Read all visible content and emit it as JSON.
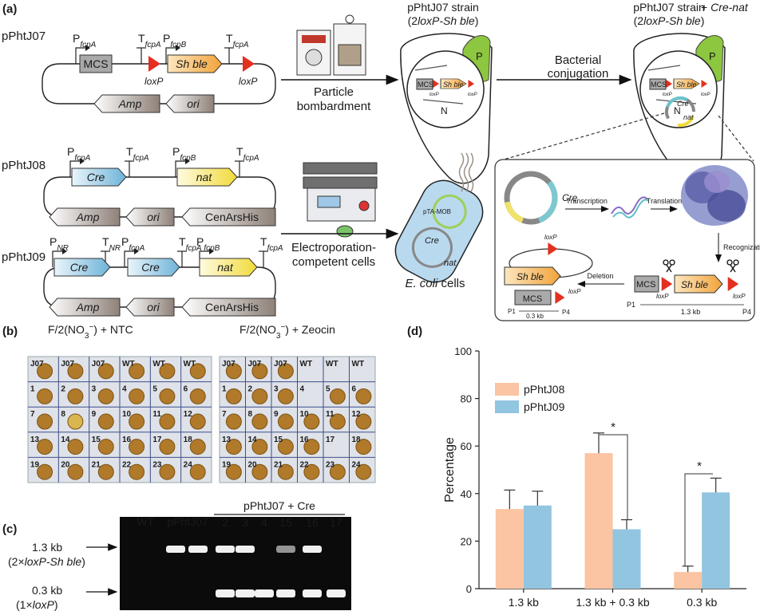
{
  "panel_a": {
    "label": "(a)",
    "plasmids": [
      {
        "name": "pPhtJ07",
        "elements": [
          "MCS",
          "Sh ble"
        ],
        "sites": [
          "loxP",
          "loxP"
        ],
        "backbone": [
          "Amp",
          "ori"
        ],
        "regulators": [
          {
            "letter": "P",
            "sub": "fcpA"
          },
          {
            "letter": "T",
            "sub": "fcpA"
          },
          {
            "letter": "P",
            "sub": "fcpB"
          },
          {
            "letter": "T",
            "sub": "fcpA"
          }
        ]
      },
      {
        "name": "pPhtJ08",
        "elements": [
          "Cre",
          "nat"
        ],
        "backbone": [
          "Amp",
          "ori",
          "CenArsHis"
        ],
        "regulators": [
          {
            "letter": "P",
            "sub": "fcpA"
          },
          {
            "letter": "T",
            "sub": "fcpA"
          },
          {
            "letter": "P",
            "sub": "fcpB"
          },
          {
            "letter": "T",
            "sub": "fcpA"
          }
        ]
      },
      {
        "name": "pPhtJ09",
        "elements": [
          "Cre",
          "Cre",
          "nat"
        ],
        "backbone": [
          "Amp",
          "ori",
          "CenArsHis"
        ],
        "regulators": [
          {
            "letter": "P",
            "sub": "NR"
          },
          {
            "letter": "T",
            "sub": "NR"
          },
          {
            "letter": "P",
            "sub": "fcpA"
          },
          {
            "letter": "T",
            "sub": "fcpA"
          },
          {
            "letter": "P",
            "sub": "fcpB"
          },
          {
            "letter": "T",
            "sub": "fcpA"
          }
        ]
      }
    ],
    "steps": {
      "bombardment": [
        "Particle",
        "bombardment"
      ],
      "conjugation": [
        "Bacterial",
        "conjugation"
      ],
      "electroporation": [
        "Electroporation-",
        "competent cells"
      ]
    },
    "strain_1": {
      "line1": "pPhtJ07 strain",
      "line2": [
        "(2",
        "loxP-Sh ble",
        ")"
      ]
    },
    "strain_2": {
      "line1": "pPhtJ07 strain",
      "line2": [
        "(2",
        "loxP-Sh ble",
        ")"
      ],
      "extra": [
        "+ ",
        "Cre-nat"
      ]
    },
    "cell_1": {
      "organelle": "P",
      "nucleus": "N",
      "mcs": "MCS",
      "gene": "Sh ble",
      "site": "loxP"
    },
    "cell_2": {
      "organelle": "P",
      "nucleus": "N",
      "mcs": "MCS",
      "gene": "Sh ble",
      "site": "loxP",
      "cre": "Cre",
      "nat": "nat"
    },
    "ecoli": {
      "plasmid": "pTA-MOB",
      "cre": "Cre",
      "nat": "nat",
      "caption": [
        "E. coli",
        " cells"
      ]
    },
    "inset": {
      "cre": "Cre",
      "transcription": "Transcription",
      "translation": "Translation",
      "recognization": "Recognization",
      "deletion": "Deletion",
      "mcs": "MCS",
      "gene": "Sh ble",
      "site": "loxP",
      "p1": "P1",
      "p4": "P4",
      "long": "1.3 kb",
      "short": "0.3 kb"
    }
  },
  "panel_b": {
    "label": "(b)",
    "plates": [
      {
        "title": {
          "pre": "F/2(NO",
          "sub": "3",
          "sup": "−",
          "post": ") + NTC"
        },
        "wells": [
          "J07",
          "J07",
          "J07",
          "WT",
          "WT",
          "WT",
          "1",
          "2",
          "3",
          "4",
          "5",
          "6",
          "7",
          "8",
          "9",
          "10",
          "11",
          "12",
          "13",
          "14",
          "15",
          "16",
          "17",
          "18",
          "19",
          "20",
          "21",
          "22",
          "23",
          "24"
        ]
      },
      {
        "title": {
          "pre": "F/2(NO",
          "sub": "3",
          "sup": "−",
          "post": ") + Zeocin"
        },
        "wells": [
          "J07",
          "J07",
          "J07",
          "WT",
          "WT",
          "WT",
          "1",
          "2",
          "3",
          "4",
          "5",
          "6",
          "7",
          "8",
          "9",
          "10",
          "11",
          "12",
          "13",
          "14",
          "15",
          "16",
          "17",
          "18",
          "19",
          "20",
          "21",
          "22",
          "23",
          "24"
        ]
      }
    ]
  },
  "panel_c": {
    "label": "(c)",
    "lanes": [
      "WT",
      "pPhtJ07"
    ],
    "group": "pPhtJ07 + Cre",
    "clones": [
      "2",
      "3",
      "4",
      "15",
      "16",
      "17"
    ],
    "band_1": {
      "size": "1.3 kb",
      "desc": [
        "(2×",
        "loxP-Sh ble",
        ")"
      ]
    },
    "band_2": {
      "size": "0.3 kb",
      "desc": [
        "(1×",
        "loxP",
        ")"
      ]
    }
  },
  "chart_data": {
    "type": "bar",
    "panel_label": "(d)",
    "ylabel": "Percentage",
    "categories": [
      "1.3 kb",
      "1.3 kb + 0.3 kb",
      "0.3 kb"
    ],
    "series": [
      {
        "name": "pPhtJ08",
        "color": "#fbc4a2",
        "values": [
          33.5,
          57,
          7
        ],
        "errors": [
          8,
          8.5,
          2.5
        ]
      },
      {
        "name": "pPhtJ09",
        "color": "#92c5e0",
        "values": [
          35,
          25,
          40.5
        ],
        "errors": [
          6,
          4,
          6
        ]
      }
    ],
    "ylim": [
      0,
      100
    ],
    "yticks": [
      0,
      20,
      40,
      60,
      80,
      100
    ],
    "annotations": [
      "*",
      "*"
    ],
    "legend": "upper left"
  }
}
